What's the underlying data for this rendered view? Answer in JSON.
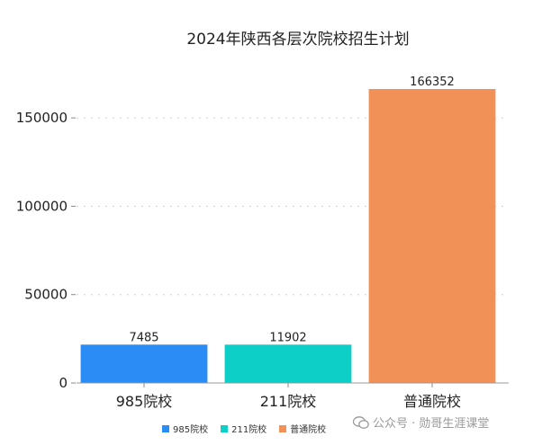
{
  "chart_data": {
    "type": "bar",
    "title": "2024年陕西各层次院校招生计划",
    "categories": [
      "985院校",
      "211院校",
      "普通院校"
    ],
    "values": [
      7485,
      11902,
      166352
    ],
    "colors": [
      "#2b8cf5",
      "#0ecfc8",
      "#f19157"
    ],
    "ylim": [
      0,
      175000
    ],
    "yticks": [
      "0",
      "50000",
      "100000",
      "150000"
    ],
    "grid": true,
    "legend_position": "bottom"
  },
  "legend": [
    "985院校",
    "211院校",
    "普通院校"
  ],
  "watermark": "公众号 · 勋哥生涯课堂"
}
